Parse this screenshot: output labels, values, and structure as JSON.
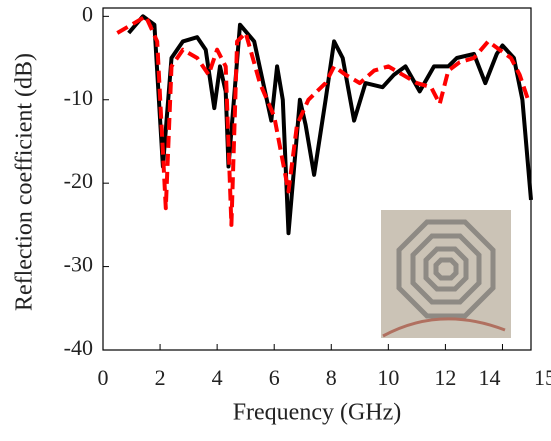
{
  "chart_data": {
    "type": "line",
    "x_label": "Frequency (GHz)",
    "y_label": "Reflection coefficient (dB)",
    "xlim": [
      0,
      15
    ],
    "ylim": [
      -40,
      1
    ],
    "xticks": [
      0,
      2,
      4,
      6,
      8,
      10,
      12,
      14,
      15
    ],
    "yticks": [
      0,
      -10,
      -20,
      -30,
      -40
    ],
    "series": [
      {
        "color": "#000000",
        "dash": false,
        "x": [
          0.9,
          1.4,
          1.8,
          2.1,
          2.4,
          2.8,
          3.3,
          3.6,
          3.9,
          4.1,
          4.3,
          4.4,
          4.8,
          5.3,
          5.9,
          6.1,
          6.3,
          6.5,
          6.9,
          7.1,
          7.4,
          7.8,
          8.1,
          8.4,
          8.8,
          9.2,
          9.8,
          10.2,
          10.6,
          11.1,
          11.6,
          12.1,
          12.4,
          13.0,
          13.4,
          13.8,
          14.0,
          14.4,
          14.7,
          15.0
        ],
        "values": [
          -2,
          0,
          -1,
          -18,
          -5,
          -3,
          -2.5,
          -4,
          -11,
          -6,
          -9,
          -18,
          -1,
          -3,
          -12.5,
          -6,
          -10,
          -26,
          -10,
          -13,
          -19,
          -10,
          -3,
          -5,
          -12.5,
          -8,
          -8.5,
          -7,
          -6,
          -9,
          -6,
          -6,
          -5,
          -4.5,
          -8,
          -4.5,
          -3.5,
          -5,
          -10,
          -22
        ]
      },
      {
        "color": "#ff0000",
        "dash": true,
        "x": [
          0.5,
          1.0,
          1.5,
          1.9,
          2.2,
          2.4,
          2.8,
          3.3,
          3.7,
          4.0,
          4.3,
          4.5,
          4.7,
          5.0,
          5.5,
          6.0,
          6.5,
          6.8,
          7.2,
          7.5,
          7.8,
          8.1,
          8.5,
          9.0,
          9.5,
          10.0,
          10.5,
          11.0,
          11.5,
          11.8,
          12.1,
          12.5,
          13.0,
          13.5,
          13.9,
          14.3,
          14.6,
          14.9
        ],
        "values": [
          -2,
          -1,
          0,
          -3,
          -23,
          -6,
          -4,
          -5,
          -7,
          -4,
          -6,
          -25,
          -3,
          -2,
          -8,
          -12,
          -21,
          -13,
          -10,
          -9,
          -8,
          -6,
          -7,
          -8,
          -6.5,
          -6,
          -7,
          -8,
          -8.5,
          -10.5,
          -6.5,
          -5.5,
          -5,
          -3,
          -4,
          -5,
          -7,
          -10
        ]
      }
    ]
  }
}
